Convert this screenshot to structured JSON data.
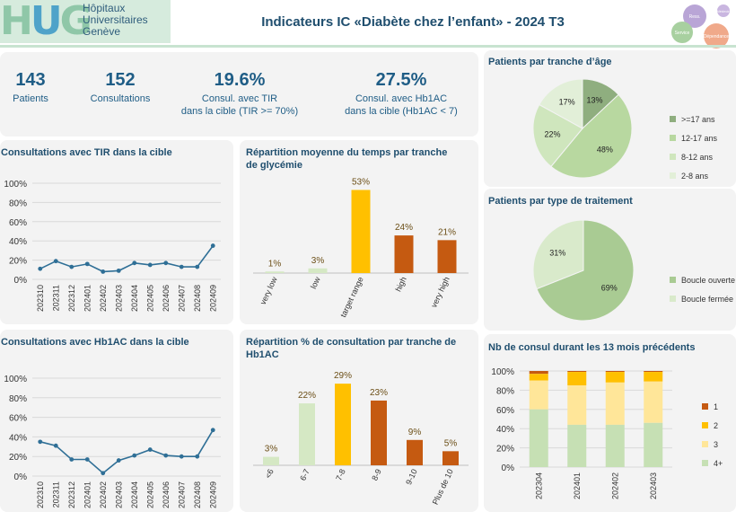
{
  "header": {
    "logo_mark": "HUG",
    "logo_lines": [
      "Hôpitaux",
      "Universitaires",
      "Genève"
    ],
    "title": "Indicateurs IC «Diabète chez l’enfant» - 2024 T3",
    "gear_labels": [
      "Ress.",
      "Service",
      "Médecin",
      "Dépendance"
    ]
  },
  "kpis": [
    {
      "value": "143",
      "label1": "Patients",
      "label2": ""
    },
    {
      "value": "152",
      "label1": "Consultations",
      "label2": ""
    },
    {
      "value": "19.6%",
      "label1": "Consul. avec TIR",
      "label2": "dans la cible (TIR >= 70%)"
    },
    {
      "value": "27.5%",
      "label1": "Consul. avec Hb1AC",
      "label2": "dans la cible (Hb1AC < 7)"
    }
  ],
  "colors": {
    "line": "#2f6f96",
    "yellow": "#ffc000",
    "orange": "#c55a11",
    "lightgreen": "#d5e8c4",
    "green": "#a9d18e",
    "midgreen": "#b8d8a0",
    "darkgreen": "#8fae7f",
    "paleyellow": "#ffe699",
    "title": "#1f4e6e"
  },
  "chart_data": [
    {
      "type": "line",
      "title": "Consultations avec TIR dans la cible",
      "x": [
        "202310",
        "202311",
        "202312",
        "202401",
        "202402",
        "202403",
        "202404",
        "202405",
        "202406",
        "202407",
        "202408",
        "202409"
      ],
      "values": [
        11,
        19,
        13,
        16,
        8,
        9,
        17,
        15,
        17,
        13,
        13,
        35
      ],
      "yticks": [
        "0%",
        "20%",
        "40%",
        "60%",
        "80%",
        "100%"
      ],
      "ylim": [
        0,
        100
      ]
    },
    {
      "type": "line",
      "title": "Consultations avec Hb1AC dans la cible",
      "x": [
        "202310",
        "202311",
        "202312",
        "202401",
        "202402",
        "202403",
        "202404",
        "202405",
        "202406",
        "202407",
        "202408",
        "202409"
      ],
      "values": [
        35,
        31,
        17,
        17,
        3,
        16,
        21,
        27,
        21,
        20,
        20,
        47
      ],
      "yticks": [
        "0%",
        "20%",
        "40%",
        "60%",
        "80%",
        "100%"
      ],
      "ylim": [
        0,
        100
      ]
    },
    {
      "type": "bar",
      "title": "Répartition moyenne du temps par tranche de glycémie",
      "categories": [
        "very low",
        "low",
        "target range",
        "high",
        "very high"
      ],
      "values": [
        1,
        3,
        53,
        24,
        21
      ],
      "labels": [
        "1%",
        "3%",
        "53%",
        "24%",
        "21%"
      ],
      "colors": [
        "#d5e8c4",
        "#d5e8c4",
        "#ffc000",
        "#c55a11",
        "#c55a11"
      ],
      "ylim": [
        0,
        55
      ]
    },
    {
      "type": "bar",
      "title": "Répartition % de consultation par tranche de Hb1AC",
      "categories": [
        "<6",
        "6-7",
        "7-8",
        "8-9",
        "9-10",
        "Plus de 10"
      ],
      "values": [
        3,
        22,
        29,
        23,
        9,
        5
      ],
      "labels": [
        "3%",
        "22%",
        "29%",
        "23%",
        "9%",
        "5%"
      ],
      "colors": [
        "#d5e8c4",
        "#d5e8c4",
        "#ffc000",
        "#c55a11",
        "#c55a11",
        "#c55a11"
      ],
      "ylim": [
        0,
        30
      ]
    },
    {
      "type": "pie",
      "title": "Patients par tranche d’âge",
      "categories": [
        ">=17 ans",
        "12-17 ans",
        "8-12 ans",
        "2-8 ans"
      ],
      "values": [
        13,
        48,
        22,
        17
      ],
      "labels": [
        "13%",
        "48%",
        "22%",
        "17%"
      ],
      "colors": [
        "#8fae7f",
        "#b8d8a0",
        "#cfe6bd",
        "#e2efd8"
      ]
    },
    {
      "type": "pie",
      "title": "Patients par type de traitement",
      "categories": [
        "Boucle ouverte",
        "Boucle fermée"
      ],
      "values": [
        69,
        31
      ],
      "labels": [
        "69%",
        "31%"
      ],
      "colors": [
        "#a9cb93",
        "#d9eacb"
      ]
    },
    {
      "type": "bar",
      "stacked": true,
      "title": "Nb de consul durant les 13 mois précédents",
      "categories": [
        "202304",
        "202401",
        "202402",
        "202403"
      ],
      "series": [
        {
          "name": "1",
          "values": [
            3,
            1,
            1,
            1
          ],
          "color": "#c55a11"
        },
        {
          "name": "2",
          "values": [
            7,
            14,
            11,
            10
          ],
          "color": "#ffc000"
        },
        {
          "name": "3",
          "values": [
            30,
            41,
            44,
            43
          ],
          "color": "#ffe699"
        },
        {
          "name": "4+",
          "values": [
            60,
            44,
            44,
            46
          ],
          "color": "#c6e0b4"
        }
      ],
      "yticks": [
        "0%",
        "20%",
        "40%",
        "60%",
        "80%",
        "100%"
      ],
      "ylim": [
        0,
        100
      ]
    }
  ]
}
